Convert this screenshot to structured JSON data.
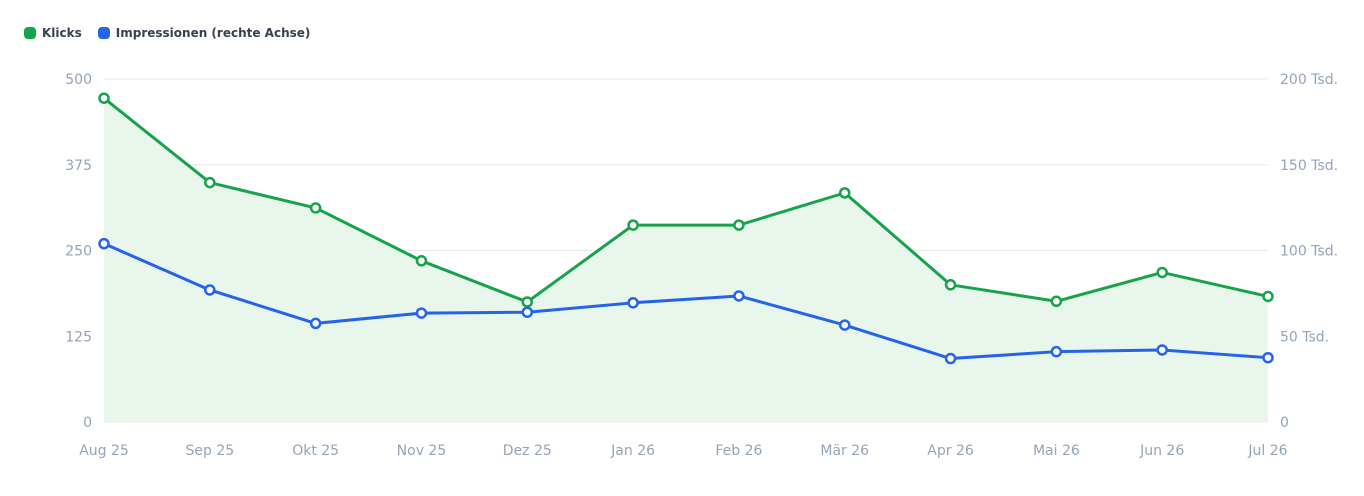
{
  "chart_data": {
    "type": "line",
    "categories": [
      "Aug 25",
      "Sep 25",
      "Okt 25",
      "Nov 25",
      "Dez 25",
      "Jan 26",
      "Feb 26",
      "Mär 26",
      "Apr 26",
      "Mai 26",
      "Jun 26",
      "Jul 26"
    ],
    "series": [
      {
        "name": "Klicks",
        "axis": "left",
        "color": "#16a34a",
        "area_fill": "#e8f6ec",
        "values": [
          472,
          349,
          312,
          235,
          175,
          287,
          287,
          334,
          200,
          176,
          218,
          183
        ]
      },
      {
        "name": "Impressionen (rechte Achse)",
        "axis": "right",
        "color": "#2563eb",
        "values": [
          104000,
          77000,
          57500,
          63500,
          64000,
          69500,
          73500,
          56500,
          37000,
          41000,
          42000,
          37500
        ]
      }
    ],
    "left_axis": {
      "min": 0,
      "max": 500,
      "ticks": [
        "0",
        "125",
        "250",
        "375",
        "500"
      ]
    },
    "right_axis": {
      "min": 0,
      "max": 200000,
      "ticks": [
        "0",
        "50 Tsd.",
        "100 Tsd.",
        "150 Tsd.",
        "200 Tsd."
      ]
    },
    "legend_position": "top-left",
    "grid": true
  }
}
